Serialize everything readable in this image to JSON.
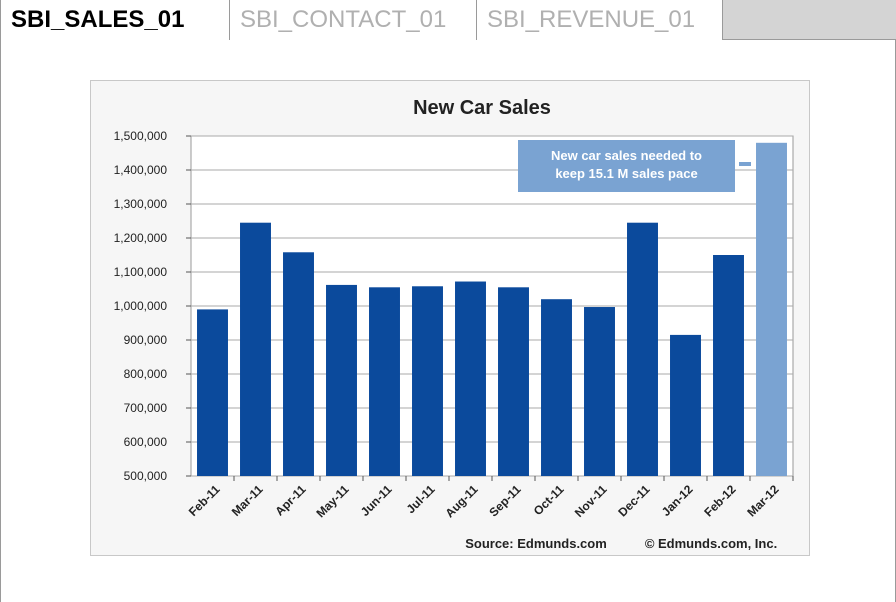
{
  "tabs": [
    {
      "label": "SBI_SALES_01",
      "active": true
    },
    {
      "label": "SBI_CONTACT_01",
      "active": false
    },
    {
      "label": "SBI_REVENUE_01",
      "active": false
    }
  ],
  "colors": {
    "bar": "#0b4a9c",
    "bar_highlight": "#7aa3d2",
    "annotation_bg": "#7aa3d2",
    "annotation_text": "#ffffff",
    "gridline": "#aaaaaa"
  },
  "chart_data": {
    "type": "bar",
    "title": "New Car Sales",
    "categories": [
      "Feb-11",
      "Mar-11",
      "Apr-11",
      "May-11",
      "Jun-11",
      "Jul-11",
      "Aug-11",
      "Sep-11",
      "Oct-11",
      "Nov-11",
      "Dec-11",
      "Jan-12",
      "Feb-12",
      "Mar-12"
    ],
    "values": [
      990000,
      1245000,
      1158000,
      1062000,
      1055000,
      1058000,
      1072000,
      1055000,
      1020000,
      997000,
      1245000,
      915000,
      1150000,
      1480000
    ],
    "highlight_index": 13,
    "ylim": [
      500000,
      1500000
    ],
    "yticks": [
      "500,000",
      "600,000",
      "700,000",
      "800,000",
      "900,000",
      "1,000,000",
      "1,100,000",
      "1,200,000",
      "1,300,000",
      "1,400,000",
      "1,500,000"
    ],
    "grid": true,
    "annotation": [
      "New car sales needed to",
      "keep 15.1 M sales pace"
    ],
    "source": "Source: Edmunds.com",
    "copyright": "© Edmunds.com, Inc."
  }
}
